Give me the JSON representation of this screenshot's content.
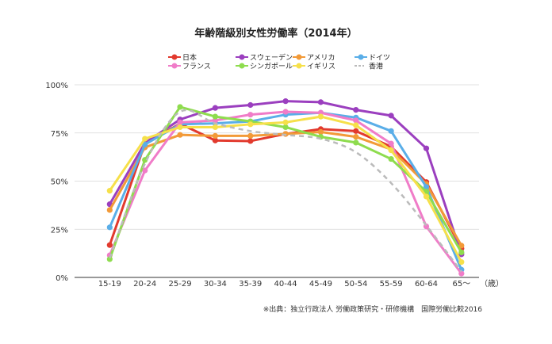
{
  "chart_data": {
    "type": "line",
    "title": "年齢階級別女性労働率（2014年）",
    "categories": [
      "15-19",
      "20-24",
      "25-29",
      "30-34",
      "35-39",
      "40-44",
      "45-49",
      "50-54",
      "55-59",
      "60-64",
      "65〜"
    ],
    "x_unit_label": "（歳）",
    "ylim": [
      0,
      100
    ],
    "y_ticks": [
      0,
      25,
      50,
      75,
      100
    ],
    "y_tick_labels": [
      "0%",
      "25%",
      "50%",
      "75%",
      "100%"
    ],
    "grid": "horizontal",
    "legend_position": "top",
    "series": [
      {
        "name": "日本",
        "color": "#e23a2e",
        "style": "solid",
        "values": [
          16.8,
          69.5,
          79.8,
          71.1,
          70.8,
          74.5,
          77.0,
          76.0,
          67.9,
          49.5,
          15.0
        ]
      },
      {
        "name": "スウェーデン",
        "color": "#9b3fbf",
        "style": "solid",
        "values": [
          38.0,
          69.8,
          82.0,
          88.0,
          89.5,
          91.5,
          91.0,
          87.0,
          84.0,
          67.0,
          12.0
        ]
      },
      {
        "name": "アメリカ",
        "color": "#f29a38",
        "style": "solid",
        "values": [
          35.0,
          67.5,
          74.0,
          73.5,
          73.5,
          74.5,
          75.5,
          73.0,
          66.5,
          48.5,
          16.5
        ]
      },
      {
        "name": "ドイツ",
        "color": "#5aaee8",
        "style": "solid",
        "values": [
          26.0,
          69.0,
          79.5,
          80.0,
          81.0,
          84.5,
          85.5,
          83.0,
          76.0,
          47.0,
          4.0
        ]
      },
      {
        "name": "フランス",
        "color": "#f07cc8",
        "style": "solid",
        "values": [
          11.5,
          55.5,
          80.5,
          81.5,
          84.5,
          86.0,
          85.5,
          81.5,
          69.5,
          26.5,
          2.0
        ]
      },
      {
        "name": "シンガポール",
        "color": "#8edc4e",
        "style": "solid",
        "values": [
          9.5,
          61.0,
          88.5,
          83.5,
          81.0,
          78.0,
          73.0,
          70.0,
          61.5,
          44.5,
          13.0
        ]
      },
      {
        "name": "イギリス",
        "color": "#f6e04a",
        "style": "solid",
        "values": [
          45.0,
          72.0,
          78.0,
          78.0,
          79.5,
          80.5,
          83.5,
          79.0,
          66.0,
          42.0,
          8.0
        ]
      },
      {
        "name": "香港",
        "color": "#bbbbbb",
        "style": "dashed",
        "values": [
          10.0,
          59.0,
          86.0,
          80.0,
          76.0,
          74.0,
          72.0,
          65.0,
          49.0,
          27.0,
          3.0
        ]
      }
    ]
  },
  "source_note": "※出典：独立行政法人 労働政策研究・研修機構　国際労働比較2016"
}
